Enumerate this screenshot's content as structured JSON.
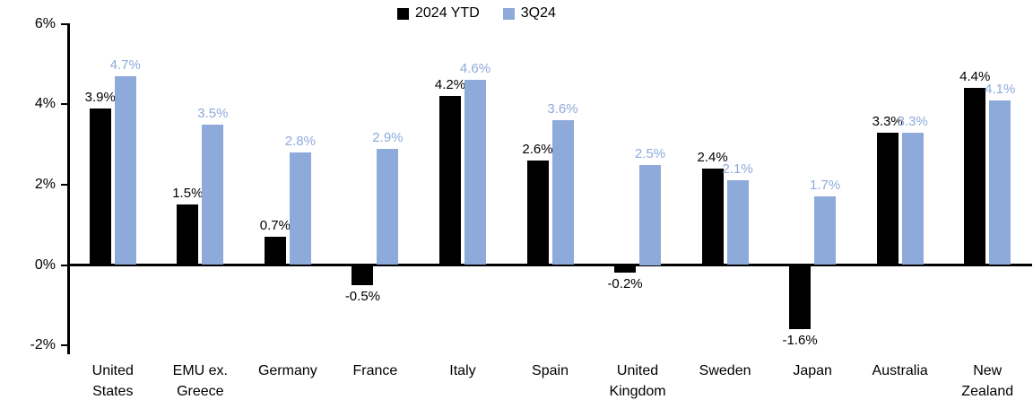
{
  "chart_data": {
    "type": "bar",
    "title": "",
    "legend": {
      "position": "top",
      "entries": [
        "2024 YTD",
        "3Q24"
      ]
    },
    "grid": false,
    "categories": [
      {
        "id": "united-states",
        "lines": [
          "United",
          "States"
        ]
      },
      {
        "id": "emu-ex-greece",
        "lines": [
          "EMU ex.",
          "Greece"
        ]
      },
      {
        "id": "germany",
        "lines": [
          "Germany"
        ]
      },
      {
        "id": "france",
        "lines": [
          "France"
        ]
      },
      {
        "id": "italy",
        "lines": [
          "Italy"
        ]
      },
      {
        "id": "spain",
        "lines": [
          "Spain"
        ]
      },
      {
        "id": "united-kingdom",
        "lines": [
          "United",
          "Kingdom"
        ]
      },
      {
        "id": "sweden",
        "lines": [
          "Sweden"
        ]
      },
      {
        "id": "japan",
        "lines": [
          "Japan"
        ]
      },
      {
        "id": "australia",
        "lines": [
          "Australia"
        ]
      },
      {
        "id": "new-zealand",
        "lines": [
          "New",
          "Zealand"
        ]
      }
    ],
    "series": [
      {
        "name": "2024 YTD",
        "color": "#000000",
        "label_color": "#000000",
        "values": [
          3.9,
          1.5,
          0.7,
          -0.5,
          4.2,
          2.6,
          -0.2,
          2.4,
          -1.6,
          3.3,
          4.4
        ],
        "labels": [
          "3.9%",
          "1.5%",
          "0.7%",
          "-0.5%",
          "4.2%",
          "2.6%",
          "-0.2%",
          "2.4%",
          "-1.6%",
          "3.3%",
          "4.4%"
        ]
      },
      {
        "name": "3Q24",
        "color": "#8EAADB",
        "label_color": "#8EAADB",
        "values": [
          4.7,
          3.5,
          2.8,
          2.9,
          4.6,
          3.6,
          2.5,
          2.1,
          1.7,
          3.3,
          4.1
        ],
        "labels": [
          "4.7%",
          "3.5%",
          "2.8%",
          "2.9%",
          "4.6%",
          "3.6%",
          "2.5%",
          "2.1%",
          "1.7%",
          "3.3%",
          "4.1%"
        ]
      }
    ],
    "y_axis": {
      "min": -2,
      "max": 6,
      "ticks": [
        {
          "label": "6%",
          "value": 6
        },
        {
          "label": "4%",
          "value": 4
        },
        {
          "label": "2%",
          "value": 2
        },
        {
          "label": "0%",
          "value": 0
        },
        {
          "label": "-2%",
          "value": -2
        }
      ]
    }
  }
}
